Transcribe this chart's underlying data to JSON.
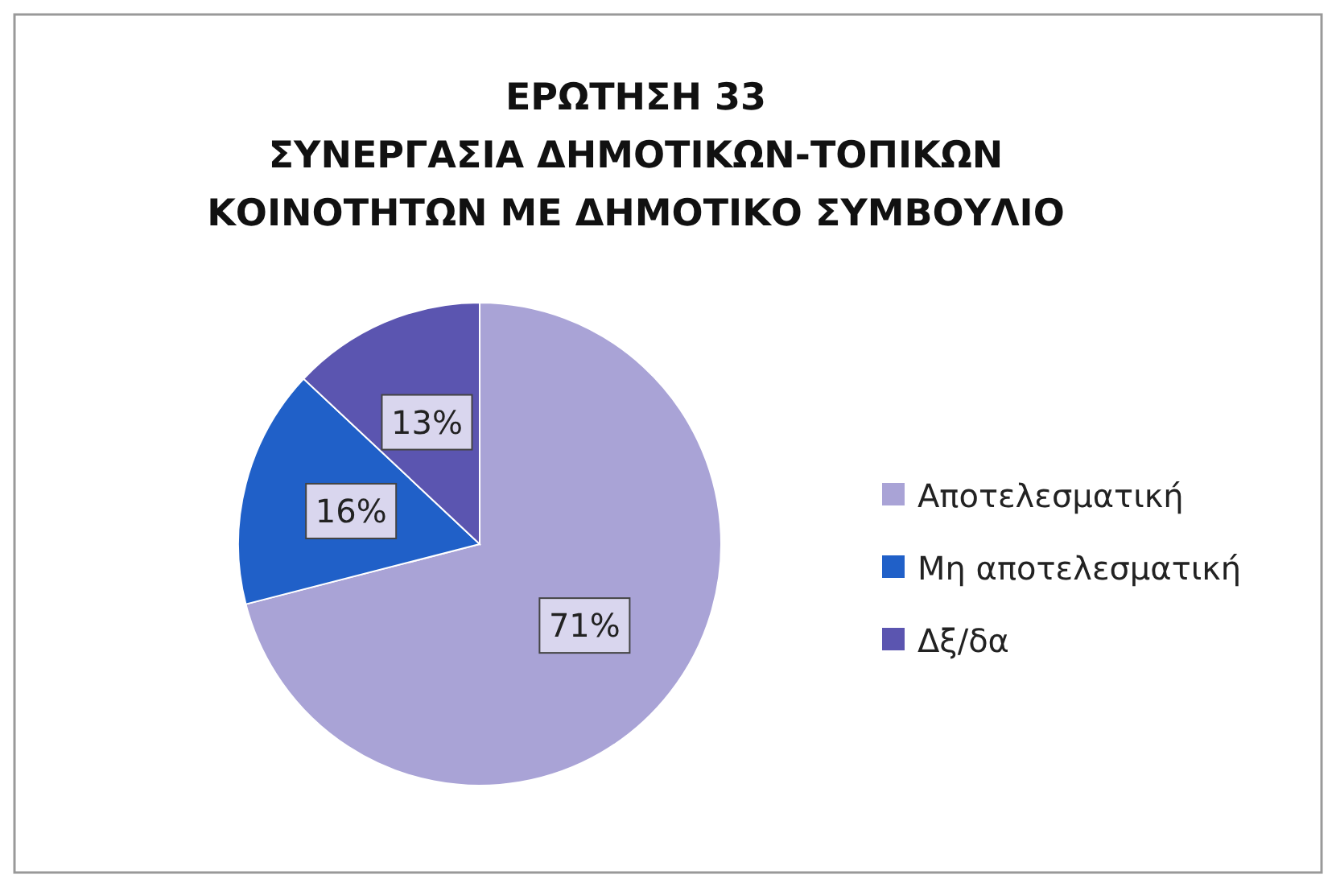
{
  "chart_data": {
    "type": "pie",
    "title": "ΕΡΩΤΗΣΗ 33\nΣΥΝΕΡΓΑΣΙΑ ΔΗΜΟΤΙΚΩΝ-ΤΟΠΙΚΩΝ\nΚΟΙΝΟΤΗΤΩΝ ΜΕ ΔΗΜΟΤΙΚΟ ΣΥΜΒΟΥΛΙΟ",
    "categories": [
      "Αποτελεσματική",
      "Μη αποτελεσματική",
      "Δξ/δα"
    ],
    "values": [
      71,
      16,
      13
    ],
    "colors": [
      "#a9a3d6",
      "#2060c8",
      "#5b55b0"
    ],
    "value_labels": [
      "71%",
      "16%",
      "13%"
    ],
    "legend": "right"
  }
}
